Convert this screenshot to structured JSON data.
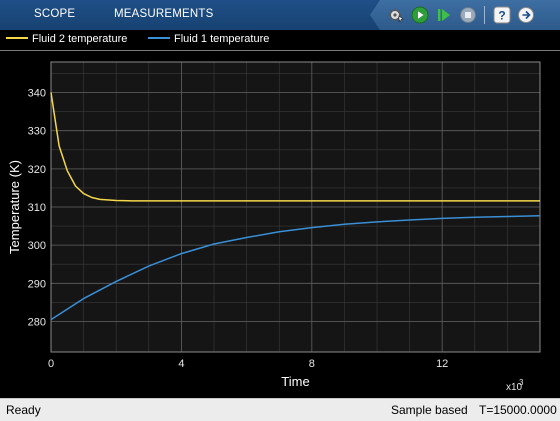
{
  "tabs": {
    "scope": "SCOPE",
    "measurements": "MEASUREMENTS"
  },
  "toolbar": {
    "icons": [
      "settings-gear-icon",
      "run-icon",
      "step-forward-icon",
      "stop-icon",
      "help-icon",
      "undock-icon"
    ]
  },
  "legend": [
    {
      "label": "Fluid 2 temperature",
      "color": "#f5d84a"
    },
    {
      "label": "Fluid 1 temperature",
      "color": "#3a8fd6"
    }
  ],
  "status": {
    "left": "Ready",
    "mode": "Sample based",
    "time": "T=15000.0000"
  },
  "chart_data": {
    "type": "line",
    "xlabel": "Time",
    "ylabel": "Temperature (K)",
    "x_exponent": "x10",
    "x_exponent_power": "3",
    "xlim": [
      0,
      15000
    ],
    "ylim": [
      272,
      348
    ],
    "xticks": [
      0,
      4000,
      8000,
      12000
    ],
    "xtick_labels": [
      "0",
      "4",
      "8",
      "12"
    ],
    "yticks": [
      280,
      290,
      300,
      310,
      320,
      330,
      340
    ],
    "yticks_minor": [
      280,
      285,
      290,
      295,
      300,
      305,
      310,
      315,
      320,
      325,
      330,
      335,
      340,
      345
    ],
    "grid": true,
    "series": [
      {
        "name": "Fluid 2 temperature",
        "color": "#f5d84a",
        "x": [
          0,
          250,
          500,
          750,
          1000,
          1250,
          1500,
          2000,
          2500,
          3000,
          5000,
          8000,
          12000,
          15000
        ],
        "y": [
          340,
          326,
          319.5,
          315.5,
          313.5,
          312.5,
          312,
          311.7,
          311.6,
          311.6,
          311.6,
          311.6,
          311.6,
          311.6
        ]
      },
      {
        "name": "Fluid 1 temperature",
        "color": "#3a8fd6",
        "x": [
          0,
          1000,
          2000,
          3000,
          4000,
          5000,
          6000,
          7000,
          8000,
          9000,
          10000,
          11000,
          12000,
          13000,
          14000,
          15000
        ],
        "y": [
          280.5,
          286,
          290.5,
          294.5,
          297.8,
          300.3,
          302,
          303.5,
          304.6,
          305.5,
          306.1,
          306.6,
          307,
          307.3,
          307.5,
          307.7
        ]
      }
    ]
  }
}
